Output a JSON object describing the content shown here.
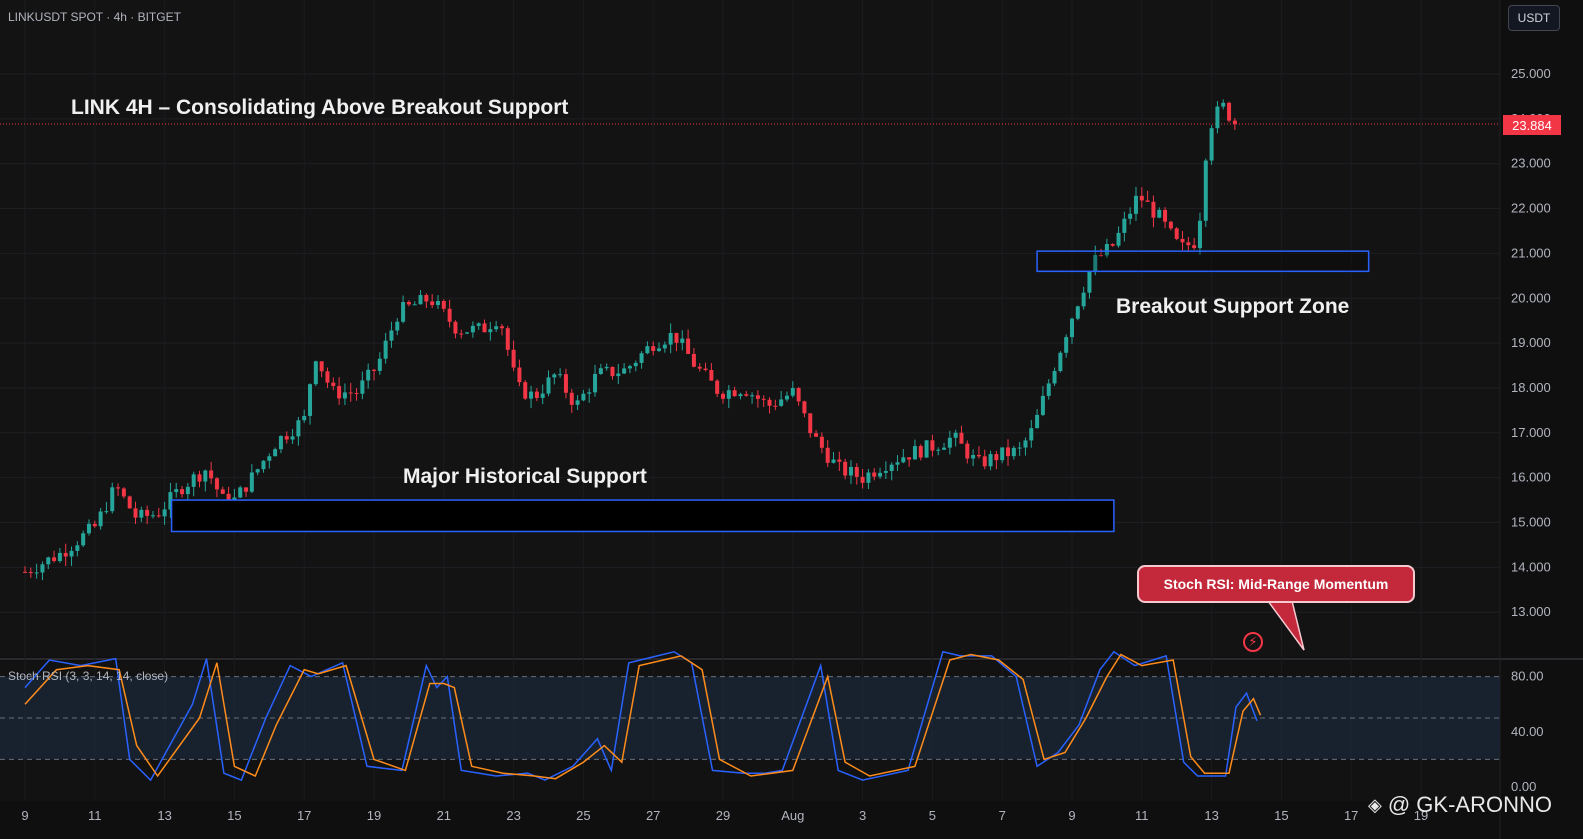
{
  "header": {
    "symbol": "LINKUSDT SPOT · 4h · BITGET",
    "currency_label": "USDT"
  },
  "title": "LINK 4H – Consolidating Above Breakout Support",
  "annotations": {
    "breakout_zone_label": "Breakout Support Zone",
    "historical_support_label": "Major Historical Support",
    "stoch_callout": "Stoch RSI: Mid-Range Momentum"
  },
  "last_price_label": "23.884",
  "indicator_label": "Stoch RSI (3, 3, 14, 14, close)",
  "watermark": "@ GK-ARONNO",
  "icons": {
    "bolt": "lightning-icon",
    "logo": "diamond-logo-icon"
  },
  "colors": {
    "up": "#26a69a",
    "down": "#f23645",
    "zone": "#2962ff",
    "k_line": "#2962ff",
    "d_line": "#ff8c1a"
  },
  "chart_data": [
    {
      "type": "candlestick",
      "title": "LINK 4H – Consolidating Above Breakout Support",
      "ylim": [
        12.0,
        25.5
      ],
      "y_ticks": [
        "13.000",
        "14.000",
        "15.000",
        "16.000",
        "17.000",
        "18.000",
        "19.000",
        "20.000",
        "21.000",
        "22.000",
        "23.000",
        "24.000",
        "25.000"
      ],
      "x_ticks": [
        "9",
        "11",
        "13",
        "15",
        "17",
        "19",
        "21",
        "23",
        "25",
        "27",
        "29",
        "Aug",
        "3",
        "5",
        "7",
        "9",
        "11",
        "13",
        "15",
        "17",
        "19"
      ],
      "last_price": 23.884,
      "close_path": [
        [
          9,
          13.9
        ],
        [
          10,
          14.3
        ],
        [
          11,
          14.9
        ],
        [
          11.6,
          15.8
        ],
        [
          12.2,
          15.1
        ],
        [
          12.8,
          15.2
        ],
        [
          13.5,
          15.8
        ],
        [
          14.2,
          16.2
        ],
        [
          14.8,
          15.3
        ],
        [
          15.5,
          16.0
        ],
        [
          16.2,
          16.8
        ],
        [
          17,
          17.3
        ],
        [
          17.3,
          18.8
        ],
        [
          17.8,
          17.9
        ],
        [
          18.5,
          17.9
        ],
        [
          19.1,
          18.5
        ],
        [
          19.7,
          19.7
        ],
        [
          20.6,
          20.0
        ],
        [
          21.4,
          19.3
        ],
        [
          22.1,
          19.3
        ],
        [
          22.6,
          19.6
        ],
        [
          23.1,
          18.0
        ],
        [
          23.6,
          17.8
        ],
        [
          24.2,
          18.3
        ],
        [
          24.8,
          17.6
        ],
        [
          25.4,
          18.3
        ],
        [
          26.2,
          18.4
        ],
        [
          27,
          19.0
        ],
        [
          27.6,
          19.2
        ],
        [
          28.2,
          18.5
        ],
        [
          28.9,
          17.9
        ],
        [
          29.6,
          18.0
        ],
        [
          30.3,
          17.6
        ],
        [
          31,
          17.9
        ],
        [
          31.6,
          16.9
        ],
        [
          32.3,
          16.2
        ],
        [
          33,
          16.0
        ],
        [
          33.6,
          16.3
        ],
        [
          34.2,
          16.5
        ],
        [
          35,
          16.7
        ],
        [
          35.6,
          16.9
        ],
        [
          36.3,
          16.3
        ],
        [
          36.9,
          16.5
        ],
        [
          37.5,
          16.6
        ],
        [
          37.9,
          17.1
        ],
        [
          38.5,
          18.5
        ],
        [
          38.9,
          19.4
        ],
        [
          39.3,
          20.2
        ],
        [
          39.6,
          20.8
        ],
        [
          40.2,
          21.2
        ],
        [
          40.9,
          22.3
        ],
        [
          41.5,
          21.8
        ],
        [
          42.1,
          21.1
        ],
        [
          42.6,
          21.3
        ],
        [
          42.9,
          23.8
        ],
        [
          43.3,
          24.3
        ],
        [
          43.7,
          23.884
        ]
      ]
    },
    {
      "type": "line",
      "name_label": "Stoch RSI (3, 3, 14, 14, close)",
      "ylim": [
        0,
        100
      ],
      "y_ticks": [
        "0.00",
        "40.00",
        "80.00"
      ],
      "bands": [
        20,
        50,
        80
      ],
      "k": [
        [
          9,
          72
        ],
        [
          9.7,
          92
        ],
        [
          10.6,
          88
        ],
        [
          11.6,
          93
        ],
        [
          12,
          20
        ],
        [
          12.6,
          5
        ],
        [
          13.8,
          60
        ],
        [
          14.2,
          93
        ],
        [
          14.7,
          10
        ],
        [
          15.2,
          5
        ],
        [
          15.9,
          50
        ],
        [
          16.6,
          88
        ],
        [
          17.2,
          80
        ],
        [
          18.1,
          90
        ],
        [
          18.8,
          15
        ],
        [
          19.8,
          12
        ],
        [
          20.5,
          88
        ],
        [
          20.8,
          72
        ],
        [
          21.1,
          80
        ],
        [
          21.5,
          12
        ],
        [
          22.5,
          8
        ],
        [
          23.4,
          10
        ],
        [
          23.9,
          5
        ],
        [
          24.7,
          15
        ],
        [
          25.4,
          35
        ],
        [
          25.8,
          12
        ],
        [
          26.3,
          90
        ],
        [
          27.6,
          98
        ],
        [
          28.1,
          90
        ],
        [
          28.7,
          12
        ],
        [
          29.6,
          10
        ],
        [
          30.2,
          10
        ],
        [
          30.7,
          12
        ],
        [
          31.8,
          88
        ],
        [
          32.3,
          12
        ],
        [
          33,
          5
        ],
        [
          34.3,
          12
        ],
        [
          35.3,
          98
        ],
        [
          35.8,
          95
        ],
        [
          36.7,
          95
        ],
        [
          37.4,
          80
        ],
        [
          38,
          15
        ],
        [
          38.6,
          25
        ],
        [
          39.2,
          45
        ],
        [
          39.8,
          85
        ],
        [
          40.2,
          98
        ],
        [
          40.8,
          88
        ],
        [
          41.7,
          95
        ],
        [
          42.2,
          18
        ],
        [
          42.6,
          8
        ],
        [
          43.4,
          8
        ],
        [
          43.7,
          58
        ],
        [
          44,
          68
        ],
        [
          44.3,
          48
        ]
      ],
      "d": [
        [
          9,
          60
        ],
        [
          9.9,
          85
        ],
        [
          10.8,
          88
        ],
        [
          11.7,
          85
        ],
        [
          12.2,
          30
        ],
        [
          12.8,
          8
        ],
        [
          14,
          50
        ],
        [
          14.5,
          90
        ],
        [
          15,
          15
        ],
        [
          15.6,
          8
        ],
        [
          16.2,
          45
        ],
        [
          17,
          85
        ],
        [
          17.4,
          82
        ],
        [
          18.2,
          88
        ],
        [
          19,
          20
        ],
        [
          19.9,
          12
        ],
        [
          20.6,
          75
        ],
        [
          21,
          75
        ],
        [
          21.3,
          72
        ],
        [
          21.8,
          15
        ],
        [
          22.7,
          10
        ],
        [
          23.6,
          8
        ],
        [
          24.2,
          6
        ],
        [
          25,
          18
        ],
        [
          25.6,
          30
        ],
        [
          26.1,
          18
        ],
        [
          26.6,
          88
        ],
        [
          27.8,
          95
        ],
        [
          28.4,
          85
        ],
        [
          28.9,
          20
        ],
        [
          29.8,
          8
        ],
        [
          30.4,
          10
        ],
        [
          31,
          12
        ],
        [
          32,
          80
        ],
        [
          32.5,
          18
        ],
        [
          33.2,
          8
        ],
        [
          34.5,
          15
        ],
        [
          35.5,
          92
        ],
        [
          36.1,
          96
        ],
        [
          36.9,
          92
        ],
        [
          37.6,
          78
        ],
        [
          38.2,
          20
        ],
        [
          38.8,
          25
        ],
        [
          39.4,
          50
        ],
        [
          40,
          80
        ],
        [
          40.4,
          96
        ],
        [
          41,
          88
        ],
        [
          41.9,
          92
        ],
        [
          42.4,
          22
        ],
        [
          42.8,
          10
        ],
        [
          43.5,
          10
        ],
        [
          43.9,
          55
        ],
        [
          44.2,
          64
        ],
        [
          44.4,
          52
        ]
      ]
    }
  ]
}
